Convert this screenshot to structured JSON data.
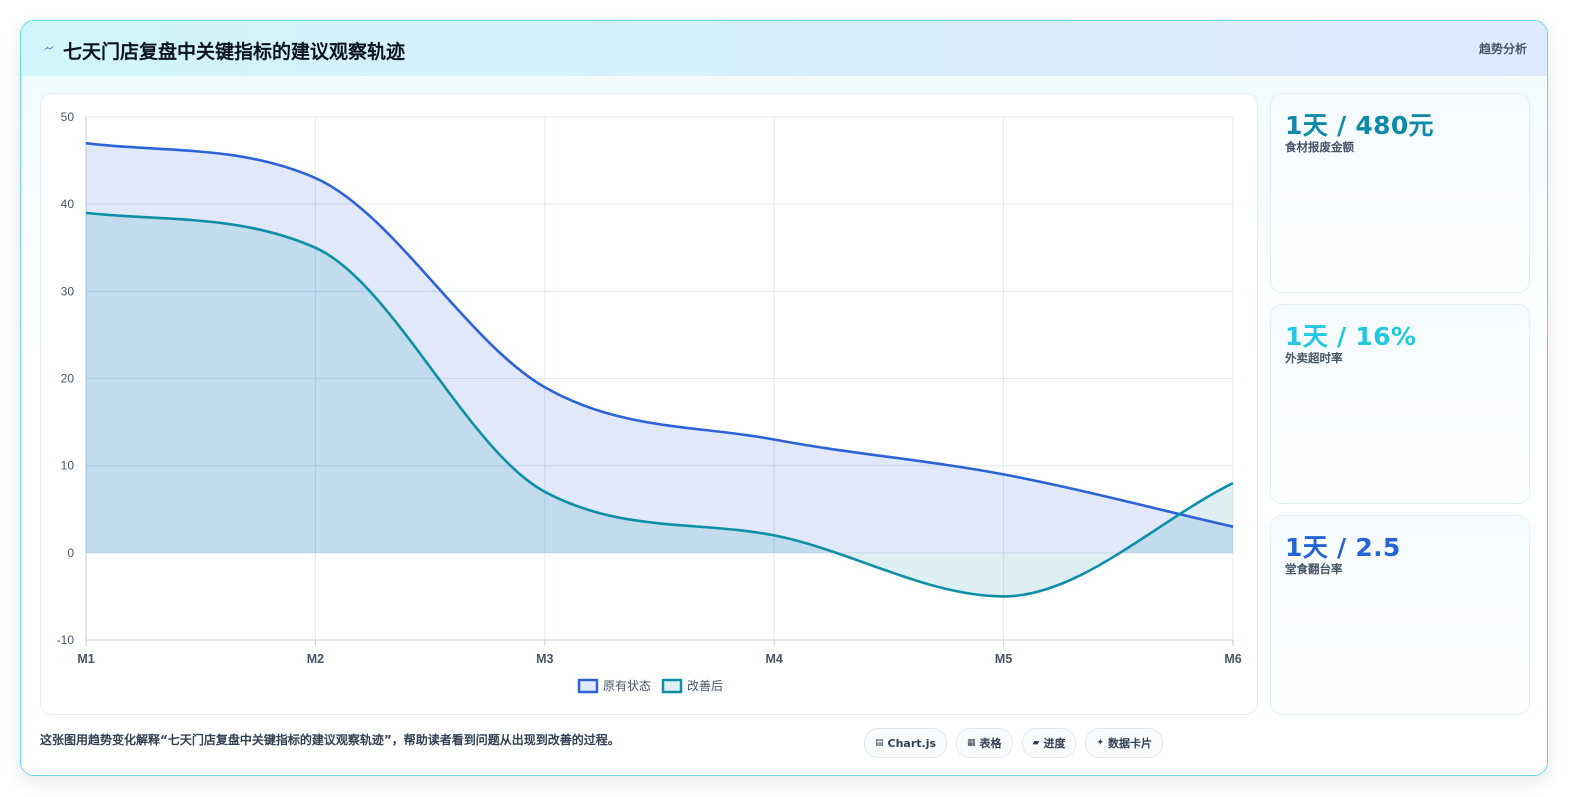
{
  "header": {
    "title": "七天门店复盘中关键指标的建议观察轨迹",
    "badge": "趋势分析",
    "icon": "lightning-icon"
  },
  "kpis": [
    {
      "value": "1天 / 480元",
      "label": "食材报废金额",
      "color": "#0e8aa8"
    },
    {
      "value": "1天 / 16%",
      "label": "外卖超时率",
      "color": "#22c7e0"
    },
    {
      "value": "1天 / 2.5",
      "label": "堂食翻台率",
      "color": "#2563d9"
    }
  ],
  "caption": "这张图用趋势变化解释“七天门店复盘中关键指标的建议观察轨迹”，帮助读者看到问题从出现到改善的过程。",
  "chips": [
    {
      "icon": "▤",
      "label": "Chart.js",
      "icon_name": "chart-icon"
    },
    {
      "icon": "▦",
      "label": "表格",
      "icon_name": "table-icon"
    },
    {
      "icon": "▰",
      "label": "进度",
      "icon_name": "progress-icon"
    },
    {
      "icon": "✦",
      "label": "数据卡片",
      "icon_name": "sparkle-icon"
    }
  ],
  "chart_data": {
    "type": "area",
    "categories": [
      "M1",
      "M2",
      "M3",
      "M4",
      "M5",
      "M6"
    ],
    "ylim": [
      -10,
      50
    ],
    "yticks": [
      -10,
      0,
      10,
      20,
      30,
      40,
      50
    ],
    "grid": true,
    "legend_position": "bottom",
    "series": [
      {
        "name": "原有状态",
        "values": [
          47,
          43,
          19,
          13,
          9,
          3
        ],
        "color": "#2d63d8",
        "fill": "rgba(45,99,216,0.15)"
      },
      {
        "name": "改善后",
        "values": [
          39,
          35,
          7,
          2,
          -5,
          8
        ],
        "color": "#0e8fa8",
        "fill": "rgba(14,143,168,0.14)"
      }
    ]
  }
}
